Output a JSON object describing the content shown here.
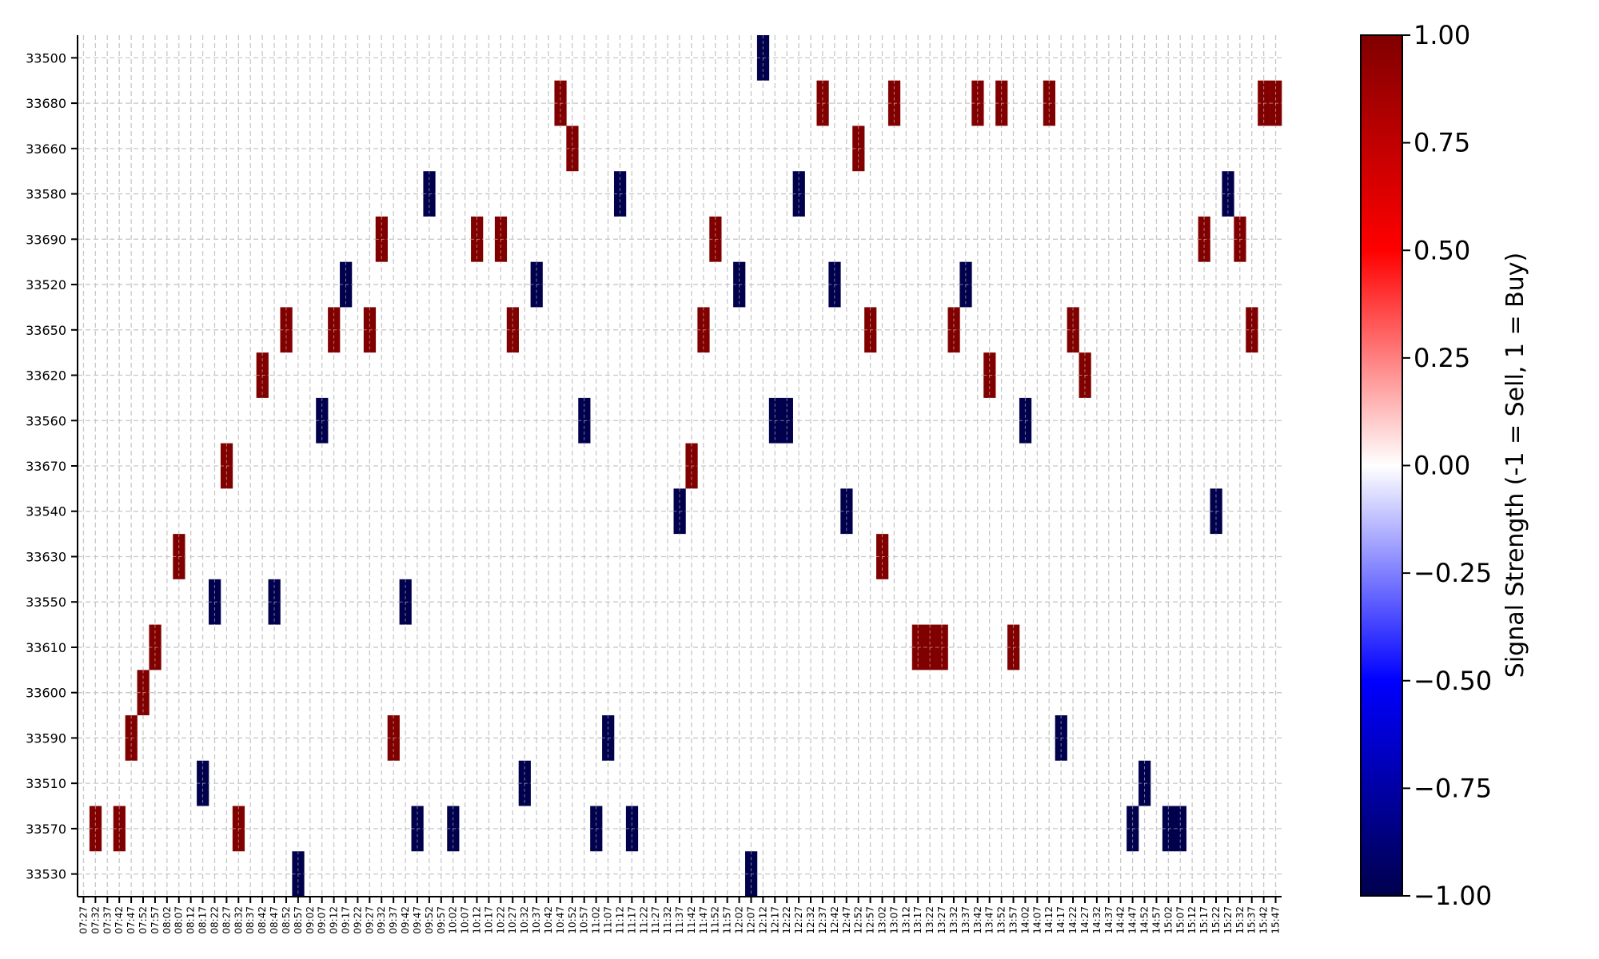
{
  "chart_data": {
    "type": "heatmap",
    "x_start": "07:27",
    "x_step_minutes": 5,
    "x_count": 101,
    "y_categories": [
      "33530",
      "33570",
      "33510",
      "33590",
      "33600",
      "33610",
      "33550",
      "33630",
      "33540",
      "33670",
      "33560",
      "33620",
      "33650",
      "33520",
      "33690",
      "33580",
      "33660",
      "33680",
      "33500"
    ],
    "cells": [
      {
        "x": "07:32",
        "y": "33570",
        "value": 1
      },
      {
        "x": "07:42",
        "y": "33570",
        "value": 1
      },
      {
        "x": "07:47",
        "y": "33590",
        "value": 1
      },
      {
        "x": "07:52",
        "y": "33600",
        "value": 1
      },
      {
        "x": "07:57",
        "y": "33610",
        "value": 1
      },
      {
        "x": "08:07",
        "y": "33630",
        "value": 1
      },
      {
        "x": "08:17",
        "y": "33510",
        "value": -1
      },
      {
        "x": "08:22",
        "y": "33550",
        "value": -1
      },
      {
        "x": "08:27",
        "y": "33670",
        "value": 1
      },
      {
        "x": "08:32",
        "y": "33570",
        "value": 1
      },
      {
        "x": "08:42",
        "y": "33620",
        "value": 1
      },
      {
        "x": "08:47",
        "y": "33550",
        "value": -1
      },
      {
        "x": "08:52",
        "y": "33650",
        "value": 1
      },
      {
        "x": "08:57",
        "y": "33530",
        "value": -1
      },
      {
        "x": "09:07",
        "y": "33560",
        "value": -1
      },
      {
        "x": "09:12",
        "y": "33650",
        "value": 1
      },
      {
        "x": "09:17",
        "y": "33520",
        "value": -1
      },
      {
        "x": "09:27",
        "y": "33650",
        "value": 1
      },
      {
        "x": "09:32",
        "y": "33690",
        "value": 1
      },
      {
        "x": "09:37",
        "y": "33590",
        "value": 1
      },
      {
        "x": "09:42",
        "y": "33550",
        "value": -1
      },
      {
        "x": "09:47",
        "y": "33570",
        "value": -1
      },
      {
        "x": "09:52",
        "y": "33580",
        "value": -1
      },
      {
        "x": "10:02",
        "y": "33570",
        "value": -1
      },
      {
        "x": "10:12",
        "y": "33690",
        "value": 1
      },
      {
        "x": "10:22",
        "y": "33690",
        "value": 1
      },
      {
        "x": "10:27",
        "y": "33650",
        "value": 1
      },
      {
        "x": "10:32",
        "y": "33510",
        "value": -1
      },
      {
        "x": "10:37",
        "y": "33520",
        "value": -1
      },
      {
        "x": "10:47",
        "y": "33680",
        "value": 1
      },
      {
        "x": "10:52",
        "y": "33660",
        "value": 1
      },
      {
        "x": "10:57",
        "y": "33560",
        "value": -1
      },
      {
        "x": "11:02",
        "y": "33570",
        "value": -1
      },
      {
        "x": "11:07",
        "y": "33590",
        "value": -1
      },
      {
        "x": "11:12",
        "y": "33580",
        "value": -1
      },
      {
        "x": "11:17",
        "y": "33570",
        "value": -1
      },
      {
        "x": "11:37",
        "y": "33540",
        "value": -1
      },
      {
        "x": "11:42",
        "y": "33670",
        "value": 1
      },
      {
        "x": "11:47",
        "y": "33650",
        "value": 1
      },
      {
        "x": "11:52",
        "y": "33690",
        "value": 1
      },
      {
        "x": "12:02",
        "y": "33520",
        "value": -1
      },
      {
        "x": "12:07",
        "y": "33530",
        "value": -1
      },
      {
        "x": "12:12",
        "y": "33500",
        "value": -1
      },
      {
        "x": "12:17",
        "y": "33560",
        "value": -1
      },
      {
        "x": "12:22",
        "y": "33560",
        "value": -1
      },
      {
        "x": "12:27",
        "y": "33580",
        "value": -1
      },
      {
        "x": "12:37",
        "y": "33680",
        "value": 1
      },
      {
        "x": "12:42",
        "y": "33520",
        "value": -1
      },
      {
        "x": "12:47",
        "y": "33540",
        "value": -1
      },
      {
        "x": "12:52",
        "y": "33660",
        "value": 1
      },
      {
        "x": "12:57",
        "y": "33650",
        "value": 1
      },
      {
        "x": "13:02",
        "y": "33630",
        "value": 1
      },
      {
        "x": "13:07",
        "y": "33680",
        "value": 1
      },
      {
        "x": "13:17",
        "y": "33610",
        "value": 1
      },
      {
        "x": "13:22",
        "y": "33610",
        "value": 1
      },
      {
        "x": "13:27",
        "y": "33610",
        "value": 1
      },
      {
        "x": "13:32",
        "y": "33650",
        "value": 1
      },
      {
        "x": "13:37",
        "y": "33520",
        "value": -1
      },
      {
        "x": "13:42",
        "y": "33680",
        "value": 1
      },
      {
        "x": "13:47",
        "y": "33620",
        "value": 1
      },
      {
        "x": "13:52",
        "y": "33680",
        "value": 1
      },
      {
        "x": "13:57",
        "y": "33610",
        "value": 1
      },
      {
        "x": "14:02",
        "y": "33560",
        "value": -1
      },
      {
        "x": "14:12",
        "y": "33680",
        "value": 1
      },
      {
        "x": "14:17",
        "y": "33590",
        "value": -1
      },
      {
        "x": "14:22",
        "y": "33650",
        "value": 1
      },
      {
        "x": "14:27",
        "y": "33620",
        "value": 1
      },
      {
        "x": "14:47",
        "y": "33570",
        "value": -1
      },
      {
        "x": "14:52",
        "y": "33510",
        "value": -1
      },
      {
        "x": "15:02",
        "y": "33570",
        "value": -1
      },
      {
        "x": "15:07",
        "y": "33570",
        "value": -1
      },
      {
        "x": "15:17",
        "y": "33690",
        "value": 1
      },
      {
        "x": "15:22",
        "y": "33540",
        "value": -1
      },
      {
        "x": "15:27",
        "y": "33580",
        "value": -1
      },
      {
        "x": "15:32",
        "y": "33690",
        "value": 1
      },
      {
        "x": "15:37",
        "y": "33650",
        "value": 1
      },
      {
        "x": "15:42",
        "y": "33680",
        "value": 1
      },
      {
        "x": "15:47",
        "y": "33680",
        "value": 1
      }
    ],
    "colorbar": {
      "label": "Signal Strength (-1 = Sell, 1 = Buy)",
      "min": -1,
      "max": 1,
      "ticks": [
        "1.00",
        "0.75",
        "0.50",
        "0.25",
        "0.00",
        "−0.25",
        "−0.50",
        "−0.75",
        "−1.00"
      ],
      "tick_values": [
        1,
        0.75,
        0.5,
        0.25,
        0,
        -0.25,
        -0.5,
        -0.75,
        -1
      ],
      "colormap": "seismic"
    },
    "colors": {
      "buy": "#800000",
      "sell": "#00004c",
      "grid": "#c8c8c8"
    },
    "grid": true
  }
}
